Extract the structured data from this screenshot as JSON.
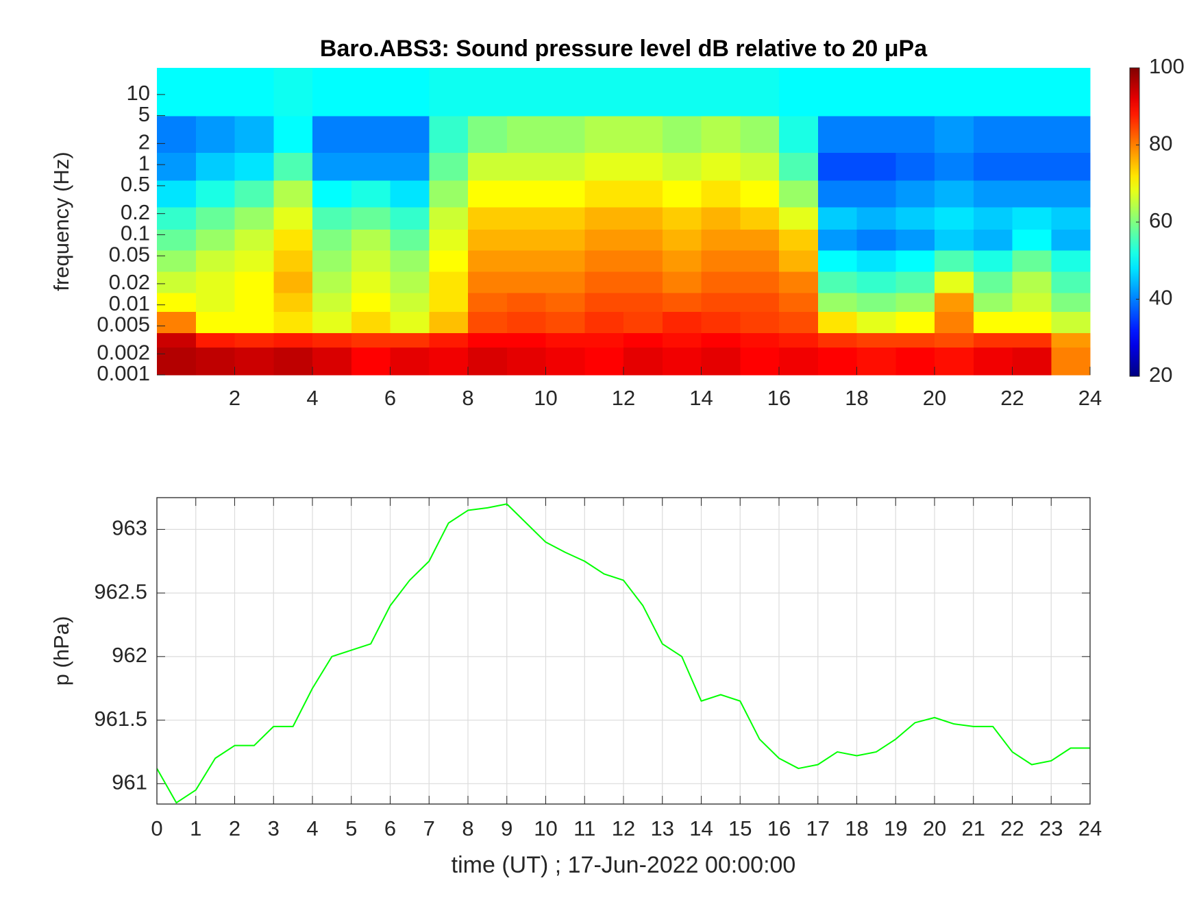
{
  "chart_data": [
    {
      "type": "heatmap",
      "title": "Baro.ABS3: Sound pressure level dB relative to 20 μPa",
      "ylabel": "frequency (Hz)",
      "log_y": true,
      "xlim": [
        0,
        24
      ],
      "xticks": [
        2,
        4,
        6,
        8,
        10,
        12,
        14,
        16,
        18,
        20,
        22,
        24
      ],
      "ylim": [
        0.001,
        24
      ],
      "yticks": [
        0.001,
        0.002,
        0.005,
        0.01,
        0.02,
        0.05,
        0.1,
        0.2,
        0.5,
        1,
        2,
        5,
        10
      ],
      "x_edges": [
        0,
        1,
        2,
        3,
        4,
        5,
        6,
        7,
        8,
        9,
        10,
        11,
        12,
        13,
        14,
        15,
        16,
        17,
        18,
        19,
        20,
        21,
        22,
        23,
        24
      ],
      "y_edges": [
        0.001,
        0.0025,
        0.004,
        0.008,
        0.015,
        0.03,
        0.06,
        0.12,
        0.25,
        0.6,
        1.5,
        5,
        24
      ],
      "z": [
        [
          96,
          95,
          94,
          95,
          93,
          90,
          92,
          91,
          93,
          92,
          91,
          90,
          92,
          91,
          92,
          90,
          91,
          90,
          89,
          90,
          89,
          91,
          92,
          80
        ],
        [
          94,
          88,
          87,
          88,
          87,
          86,
          86,
          88,
          90,
          90,
          89,
          89,
          90,
          89,
          90,
          89,
          88,
          86,
          85,
          85,
          84,
          86,
          86,
          78
        ],
        [
          80,
          70,
          70,
          72,
          68,
          73,
          68,
          75,
          84,
          85,
          84,
          86,
          85,
          87,
          86,
          85,
          84,
          72,
          68,
          70,
          80,
          70,
          70,
          66
        ],
        [
          70,
          68,
          70,
          74,
          66,
          70,
          66,
          72,
          82,
          83,
          82,
          84,
          84,
          83,
          84,
          84,
          82,
          62,
          60,
          62,
          78,
          62,
          66,
          60
        ],
        [
          66,
          68,
          70,
          76,
          64,
          68,
          64,
          72,
          80,
          80,
          80,
          82,
          82,
          80,
          82,
          82,
          80,
          56,
          54,
          56,
          68,
          58,
          64,
          56
        ],
        [
          62,
          66,
          68,
          74,
          62,
          66,
          62,
          70,
          78,
          78,
          78,
          80,
          80,
          78,
          80,
          80,
          76,
          50,
          48,
          50,
          56,
          52,
          58,
          52
        ],
        [
          58,
          62,
          66,
          72,
          60,
          64,
          58,
          68,
          76,
          76,
          76,
          78,
          78,
          76,
          78,
          78,
          74,
          42,
          40,
          42,
          46,
          44,
          50,
          44
        ],
        [
          54,
          58,
          62,
          68,
          56,
          58,
          54,
          66,
          74,
          74,
          74,
          76,
          76,
          74,
          76,
          74,
          68,
          46,
          44,
          46,
          48,
          46,
          48,
          46
        ],
        [
          48,
          52,
          56,
          64,
          50,
          52,
          48,
          62,
          70,
          70,
          70,
          72,
          72,
          70,
          72,
          70,
          62,
          40,
          40,
          42,
          44,
          42,
          42,
          42
        ],
        [
          42,
          46,
          48,
          56,
          42,
          42,
          42,
          58,
          66,
          66,
          66,
          68,
          68,
          66,
          68,
          66,
          56,
          36,
          36,
          38,
          40,
          38,
          38,
          38
        ],
        [
          40,
          42,
          44,
          50,
          40,
          40,
          40,
          54,
          60,
          62,
          62,
          64,
          64,
          62,
          64,
          62,
          52,
          40,
          40,
          40,
          42,
          40,
          40,
          40
        ],
        [
          50,
          50,
          50,
          51,
          50,
          50,
          50,
          51,
          51,
          51,
          51,
          51,
          51,
          51,
          51,
          51,
          50,
          50,
          50,
          50,
          50,
          50,
          50,
          50
        ]
      ],
      "colormap": "jet",
      "clim": [
        20,
        100
      ],
      "cticks": [
        20,
        40,
        60,
        80,
        100
      ]
    },
    {
      "type": "line",
      "xlabel": "time (UT) ; 17-Jun-2022 00:00:00",
      "ylabel": "p (hPa)",
      "grid": true,
      "xlim": [
        0,
        24
      ],
      "xticks": [
        0,
        1,
        2,
        3,
        4,
        5,
        6,
        7,
        8,
        9,
        10,
        11,
        12,
        13,
        14,
        15,
        16,
        17,
        18,
        19,
        20,
        21,
        22,
        23,
        24
      ],
      "ylim": [
        960.84,
        963.25
      ],
      "yticks": [
        961,
        961.5,
        962,
        962.5,
        963
      ],
      "x": [
        0,
        0.5,
        1,
        1.5,
        2,
        2.5,
        3,
        3.5,
        4,
        4.5,
        5,
        5.5,
        6,
        6.5,
        7,
        7.5,
        8,
        8.5,
        9,
        9.5,
        10,
        10.5,
        11,
        11.5,
        12,
        12.5,
        13,
        13.5,
        14,
        14.5,
        15,
        15.5,
        16,
        16.5,
        17,
        17.5,
        18,
        18.5,
        19,
        19.5,
        20,
        20.5,
        21,
        21.5,
        22,
        22.5,
        23,
        23.5,
        24
      ],
      "series": [
        {
          "color": "#00ff00",
          "values": [
            961.12,
            960.85,
            960.95,
            961.2,
            961.3,
            961.3,
            961.45,
            961.45,
            961.75,
            962.0,
            962.05,
            962.1,
            962.4,
            962.6,
            962.75,
            963.05,
            963.15,
            963.17,
            963.2,
            963.05,
            962.9,
            962.82,
            962.75,
            962.65,
            962.6,
            962.4,
            962.1,
            962.0,
            961.65,
            961.7,
            961.65,
            961.35,
            961.2,
            961.12,
            961.15,
            961.25,
            961.22,
            961.25,
            961.35,
            961.48,
            961.52,
            961.47,
            961.45,
            961.45,
            961.25,
            961.15,
            961.18,
            961.28,
            961.28
          ]
        }
      ]
    }
  ]
}
